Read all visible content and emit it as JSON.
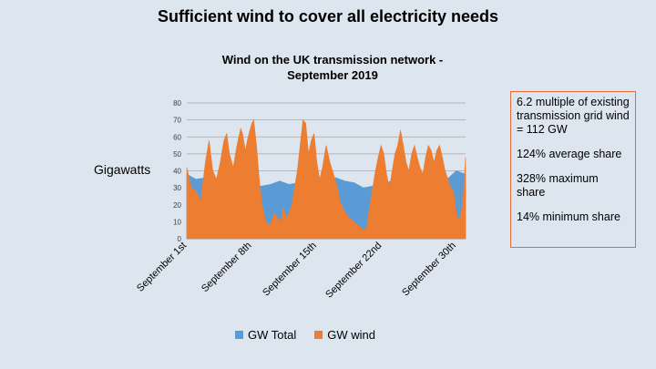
{
  "slide": {
    "title": "Sufficient wind to cover all electricity needs"
  },
  "info_box": {
    "lines": [
      "6.2 multiple of existing transmission grid wind = 112 GW",
      "124% average share",
      "328% maximum share",
      "14% minimum share"
    ]
  },
  "colors": {
    "gw_total": "#5b9bd5",
    "gw_wind": "#ed7d31",
    "box_border": "#e46c3a",
    "background": "#dde5ef"
  },
  "chart_data": {
    "type": "area",
    "title": "Wind on the UK transmission network - September 2019",
    "title_lines": [
      "Wind on the UK transmission network -",
      "September 2019"
    ],
    "ylabel": "Gigawatts",
    "xlabel": "",
    "ylim": [
      0,
      80
    ],
    "yticks": [
      0,
      10,
      20,
      30,
      40,
      50,
      60,
      70,
      80
    ],
    "grid": true,
    "legend_position": "bottom",
    "x_domain": [
      1,
      31
    ],
    "x_ticks": [
      {
        "label": "September 1st",
        "day": 1
      },
      {
        "label": "September 8th",
        "day": 8
      },
      {
        "label": "September 15th",
        "day": 15
      },
      {
        "label": "September 22nd",
        "day": 22
      },
      {
        "label": "September 30th",
        "day": 30
      }
    ],
    "series": [
      {
        "name": "GW Total",
        "color": "#5b9bd5",
        "points": [
          [
            1,
            38
          ],
          [
            2,
            35
          ],
          [
            3,
            36
          ],
          [
            4,
            30
          ],
          [
            5,
            28
          ],
          [
            6,
            30
          ],
          [
            7,
            32
          ],
          [
            8,
            30
          ],
          [
            9,
            31
          ],
          [
            10,
            32
          ],
          [
            11,
            34
          ],
          [
            12,
            32
          ],
          [
            13,
            33
          ],
          [
            14,
            35
          ],
          [
            15,
            32
          ],
          [
            16,
            34
          ],
          [
            17,
            36
          ],
          [
            18,
            34
          ],
          [
            19,
            33
          ],
          [
            20,
            30
          ],
          [
            21,
            31
          ],
          [
            22,
            32
          ],
          [
            23,
            34
          ],
          [
            24,
            33
          ],
          [
            25,
            31
          ],
          [
            26,
            33
          ],
          [
            27,
            32
          ],
          [
            28,
            34
          ],
          [
            29,
            35
          ],
          [
            30,
            40
          ],
          [
            31,
            38
          ]
        ]
      },
      {
        "name": "GW wind",
        "color": "#ed7d31",
        "points": [
          [
            1,
            42
          ],
          [
            1.5,
            30
          ],
          [
            2,
            28
          ],
          [
            2.5,
            22
          ],
          [
            3,
            45
          ],
          [
            3.4,
            58
          ],
          [
            3.8,
            40
          ],
          [
            4.2,
            35
          ],
          [
            4.6,
            45
          ],
          [
            5,
            58
          ],
          [
            5.3,
            62
          ],
          [
            5.6,
            50
          ],
          [
            6,
            42
          ],
          [
            6.4,
            55
          ],
          [
            6.8,
            65
          ],
          [
            7,
            62
          ],
          [
            7.3,
            52
          ],
          [
            7.6,
            60
          ],
          [
            8,
            68
          ],
          [
            8.2,
            70
          ],
          [
            8.5,
            55
          ],
          [
            8.8,
            35
          ],
          [
            9.1,
            20
          ],
          [
            9.5,
            10
          ],
          [
            10,
            8
          ],
          [
            10.4,
            15
          ],
          [
            10.8,
            12
          ],
          [
            11.1,
            10
          ],
          [
            11.4,
            18
          ],
          [
            11.7,
            12
          ],
          [
            12,
            15
          ],
          [
            12.3,
            20
          ],
          [
            12.6,
            30
          ],
          [
            12.9,
            40
          ],
          [
            13.2,
            55
          ],
          [
            13.5,
            70
          ],
          [
            13.8,
            68
          ],
          [
            14.1,
            50
          ],
          [
            14.4,
            58
          ],
          [
            14.7,
            62
          ],
          [
            15,
            45
          ],
          [
            15.3,
            35
          ],
          [
            15.6,
            42
          ],
          [
            16,
            55
          ],
          [
            16.4,
            45
          ],
          [
            16.8,
            38
          ],
          [
            17.2,
            30
          ],
          [
            17.5,
            22
          ],
          [
            17.8,
            18
          ],
          [
            18.1,
            15
          ],
          [
            18.5,
            12
          ],
          [
            19,
            10
          ],
          [
            19.4,
            8
          ],
          [
            19.8,
            6
          ],
          [
            20.1,
            5
          ],
          [
            20.4,
            8
          ],
          [
            20.7,
            20
          ],
          [
            21,
            30
          ],
          [
            21.3,
            40
          ],
          [
            21.6,
            48
          ],
          [
            21.9,
            55
          ],
          [
            22.2,
            50
          ],
          [
            22.5,
            38
          ],
          [
            22.8,
            30
          ],
          [
            23.1,
            40
          ],
          [
            23.4,
            50
          ],
          [
            23.7,
            55
          ],
          [
            24,
            64
          ],
          [
            24.3,
            55
          ],
          [
            24.6,
            45
          ],
          [
            24.9,
            40
          ],
          [
            25.2,
            50
          ],
          [
            25.5,
            55
          ],
          [
            25.8,
            48
          ],
          [
            26.1,
            42
          ],
          [
            26.4,
            38
          ],
          [
            26.7,
            48
          ],
          [
            27,
            55
          ],
          [
            27.3,
            52
          ],
          [
            27.6,
            45
          ],
          [
            27.9,
            52
          ],
          [
            28.2,
            55
          ],
          [
            28.5,
            48
          ],
          [
            28.8,
            40
          ],
          [
            29.1,
            35
          ],
          [
            29.4,
            30
          ],
          [
            29.7,
            28
          ],
          [
            30,
            15
          ],
          [
            30.3,
            10
          ],
          [
            30.6,
            18
          ],
          [
            30.8,
            30
          ],
          [
            31,
            48
          ]
        ]
      }
    ]
  }
}
